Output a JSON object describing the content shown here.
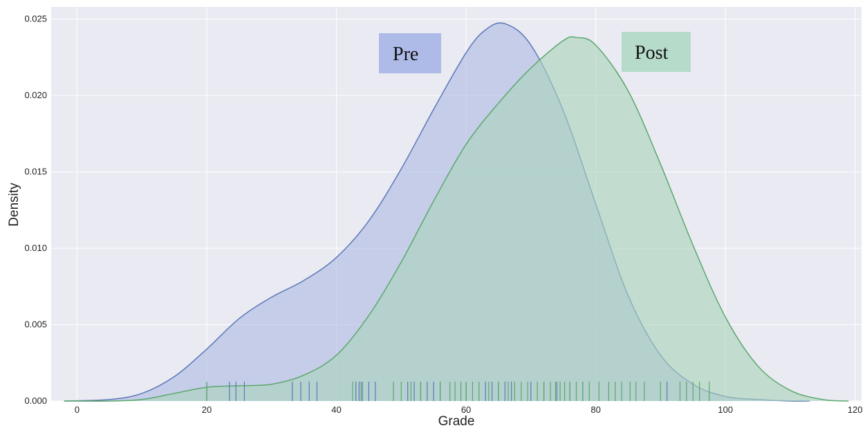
{
  "chart_data": {
    "type": "area",
    "xlabel": "Grade",
    "ylabel": "Density",
    "xlim": [
      -4,
      121
    ],
    "ylim": [
      0,
      0.0258
    ],
    "x_ticks": [
      0,
      20,
      40,
      60,
      80,
      100,
      120
    ],
    "x_tick_labels": [
      "0",
      "20",
      "40",
      "60",
      "80",
      "100",
      "120"
    ],
    "y_ticks": [
      0,
      0.005,
      0.01,
      0.015,
      0.02,
      0.025
    ],
    "y_tick_labels": [
      "0.000",
      "0.005",
      "0.010",
      "0.015",
      "0.020",
      "0.025"
    ],
    "grid": true,
    "legend_placement": "top",
    "series": [
      {
        "name": "Pre",
        "color": "#5a78b8",
        "fill": "#aebbe4",
        "x": [
          -2,
          5,
          10,
          15,
          20,
          25,
          30,
          35,
          40,
          45,
          50,
          55,
          60,
          63,
          66,
          70,
          75,
          80,
          85,
          90,
          95,
          100,
          105,
          110,
          113
        ],
        "y": [
          0.0,
          0.0001,
          0.0005,
          0.0016,
          0.0034,
          0.0054,
          0.0068,
          0.0079,
          0.0094,
          0.0118,
          0.0152,
          0.0191,
          0.0228,
          0.0243,
          0.0247,
          0.0233,
          0.019,
          0.0129,
          0.0069,
          0.003,
          0.0011,
          0.0003,
          0.0001,
          0.0,
          0.0
        ],
        "rug": [
          20,
          23.5,
          24.5,
          25.8,
          33.2,
          34.5,
          35.8,
          37,
          43,
          43.5,
          44,
          45,
          46,
          51,
          52,
          53,
          54,
          55,
          56,
          60,
          63,
          64,
          65,
          66,
          67,
          70,
          72,
          74,
          76,
          78,
          91
        ]
      },
      {
        "name": "Post",
        "color": "#5aa86a",
        "fill": "#a9d4bb",
        "x": [
          -2,
          5,
          10,
          15,
          20,
          25,
          30,
          35,
          40,
          45,
          50,
          55,
          60,
          65,
          70,
          75,
          77,
          80,
          85,
          90,
          95,
          100,
          105,
          110,
          115,
          119
        ],
        "y": [
          0.0,
          0.0,
          0.0001,
          0.0005,
          0.0009,
          0.001,
          0.0011,
          0.0017,
          0.003,
          0.0056,
          0.0091,
          0.0131,
          0.0168,
          0.0195,
          0.0218,
          0.0236,
          0.0238,
          0.0233,
          0.0203,
          0.0155,
          0.0102,
          0.0055,
          0.0023,
          0.0007,
          0.0001,
          0.0
        ],
        "rug": [
          20,
          42.5,
          43.8,
          48.8,
          50,
          51.5,
          53,
          56,
          57.5,
          58.3,
          59.2,
          60,
          61,
          62,
          63.5,
          65,
          66.5,
          67.5,
          68.5,
          69.5,
          71,
          72,
          73,
          73.8,
          74.5,
          75.2,
          76,
          77,
          78,
          79,
          80.5,
          82,
          83,
          84,
          85.3,
          86.2,
          87.5,
          90,
          93,
          94,
          95,
          96,
          97.5
        ]
      }
    ]
  }
}
